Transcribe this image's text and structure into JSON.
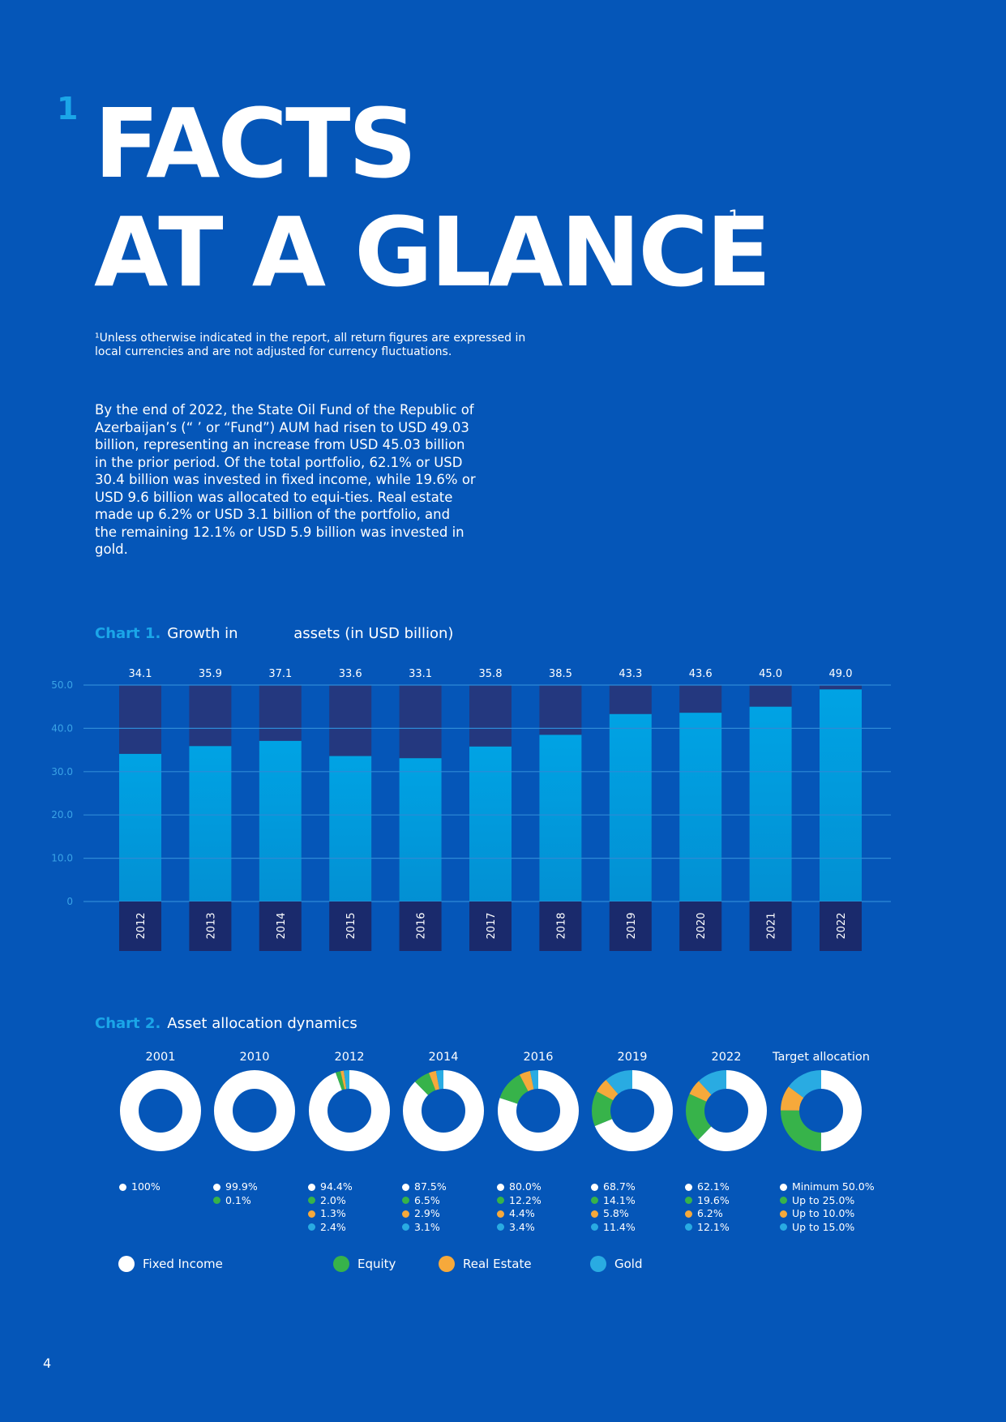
{
  "heading": {
    "section_number": "1",
    "line1": "FACTS",
    "line2": "AT A GLANCE",
    "superscript": "1"
  },
  "footnote": "¹Unless otherwise indicated in the report, all return figures are expressed in local currencies and are not adjusted for currency fluctuations.",
  "intro": "By the end of 2022, the State Oil Fund of the Republic of Azerbaijan’s (“ ’ or “Fund”) AUM had risen to USD 49.03 billion, representing an increase from USD 45.03 billion in the prior period. Of the total portfolio, 62.1% or USD 30.4 billion was invested in fixed income, while 19.6% or USD 9.6 billion was allocated to equi-ties. Real estate made up 6.2% or USD 3.1 billion of the portfolio, and the remaining 12.1% or USD 5.9 billion was invested in gold.",
  "chart1_title": {
    "num": "Chart 1.",
    "text": "Growth in            assets (in USD billion)"
  },
  "chart2_title": {
    "num": "Chart 2.",
    "text": "Asset allocation dynamics"
  },
  "colors": {
    "background": "#0556B8",
    "accent": "#1BA6E8",
    "bar_fill": "#00A3E4",
    "bar_background": "#24387F",
    "year_box": "#1A2A6C",
    "fixed_income": "#FFFFFF",
    "equity": "#37B34A",
    "real_estate": "#F6A93B",
    "gold": "#29ABE2"
  },
  "chart_data": [
    {
      "type": "bar",
      "title": "Growth in assets (in USD billion)",
      "categories": [
        "2012",
        "2013",
        "2014",
        "2015",
        "2016",
        "2017",
        "2018",
        "2019",
        "2020",
        "2021",
        "2022"
      ],
      "values": [
        34.1,
        35.9,
        37.1,
        33.6,
        33.1,
        35.8,
        38.5,
        43.3,
        43.6,
        45.0,
        49.0
      ],
      "value_labels": [
        "34.1",
        "35.9",
        "37.1",
        "33.6",
        "33.1",
        "35.8",
        "38.5",
        "43.3",
        "43.6",
        "45.0",
        "49.0"
      ],
      "ylim": [
        0,
        50
      ],
      "yticks": [
        "50.0",
        "40.0",
        "30.0",
        "20.0",
        "10.0",
        "0"
      ],
      "grid": true
    },
    {
      "type": "pie",
      "title": "Asset allocation dynamics",
      "series_names": [
        "Fixed Income",
        "Equity",
        "Real Estate",
        "Gold"
      ],
      "charts": [
        {
          "label": "2001",
          "values": [
            100.0,
            0,
            0,
            0
          ],
          "labels": [
            "100%"
          ]
        },
        {
          "label": "2010",
          "values": [
            99.9,
            0.1,
            0,
            0
          ],
          "labels": [
            "99.9%",
            "0.1%"
          ]
        },
        {
          "label": "2012",
          "values": [
            94.4,
            2.0,
            1.3,
            2.4
          ],
          "labels": [
            "94.4%",
            "2.0%",
            "1.3%",
            "2.4%"
          ]
        },
        {
          "label": "2014",
          "values": [
            87.5,
            6.5,
            2.9,
            3.1
          ],
          "labels": [
            "87.5%",
            "6.5%",
            "2.9%",
            "3.1%"
          ]
        },
        {
          "label": "2016",
          "values": [
            80.0,
            12.2,
            4.4,
            3.4
          ],
          "labels": [
            "80.0%",
            "12.2%",
            "4.4%",
            "3.4%"
          ]
        },
        {
          "label": "2019",
          "values": [
            68.7,
            14.1,
            5.8,
            11.4
          ],
          "labels": [
            "68.7%",
            "14.1%",
            "5.8%",
            "11.4%"
          ]
        },
        {
          "label": "2022",
          "values": [
            62.1,
            19.6,
            6.2,
            12.1
          ],
          "labels": [
            "62.1%",
            "19.6%",
            "6.2%",
            "12.1%"
          ]
        },
        {
          "label": "Target allocation",
          "values": [
            50.0,
            25.0,
            10.0,
            15.0
          ],
          "labels": [
            "Minimum 50.0%",
            "Up to 25.0%",
            "Up to 10.0%",
            "Up to 15.0%"
          ]
        }
      ]
    }
  ],
  "legend": [
    {
      "label": "Fixed Income",
      "color": "#FFFFFF"
    },
    {
      "label": "Equity",
      "color": "#37B34A"
    },
    {
      "label": "Real Estate",
      "color": "#F6A93B"
    },
    {
      "label": "Gold",
      "color": "#29ABE2"
    }
  ],
  "page_number": "4"
}
